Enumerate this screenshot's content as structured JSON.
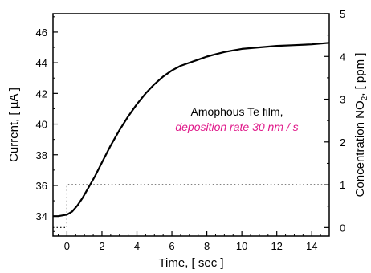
{
  "chart_data": {
    "type": "line",
    "xlabel": "Time,  [ sec ]",
    "ylabel_left": "Current,  [ µA ]",
    "ylabel_right_prefix": "Concentration NO",
    "ylabel_right_sub": "2",
    "ylabel_right_suffix": ",  [ ppm ]",
    "xlim": [
      -0.8,
      15
    ],
    "ylim_left": [
      32.7,
      47.2
    ],
    "ylim_right": [
      -0.2,
      5
    ],
    "x_ticks": [
      0,
      2,
      4,
      6,
      8,
      10,
      12,
      14
    ],
    "y_left_ticks": [
      34,
      36,
      38,
      40,
      42,
      44,
      46
    ],
    "y_right_ticks": [
      0,
      1,
      2,
      3,
      4,
      5
    ],
    "grid": false,
    "annotation_line1": "Amophous Te film,",
    "annotation_line2": "deposition rate 30 nm / s",
    "annotation_line2_color": "#e0198a",
    "series": [
      {
        "axis": "left",
        "style": "solid",
        "color": "#000000",
        "x": [
          -0.8,
          -0.5,
          0,
          0.3,
          0.6,
          0.9,
          1.2,
          1.6,
          2,
          2.5,
          3,
          3.5,
          4,
          4.5,
          5,
          5.5,
          6,
          6.5,
          7,
          7.5,
          8,
          8.5,
          9,
          9.5,
          10,
          11,
          12,
          13,
          14,
          15
        ],
        "y": [
          34.0,
          34.0,
          34.1,
          34.3,
          34.7,
          35.2,
          35.8,
          36.6,
          37.5,
          38.6,
          39.6,
          40.5,
          41.3,
          42.0,
          42.6,
          43.1,
          43.5,
          43.8,
          44.0,
          44.2,
          44.4,
          44.55,
          44.7,
          44.8,
          44.9,
          45.0,
          45.1,
          45.15,
          45.2,
          45.3
        ]
      },
      {
        "axis": "right",
        "style": "dotted",
        "color": "#000000",
        "x": [
          -0.8,
          0,
          0,
          15
        ],
        "y": [
          0,
          0,
          1,
          1
        ]
      }
    ]
  }
}
